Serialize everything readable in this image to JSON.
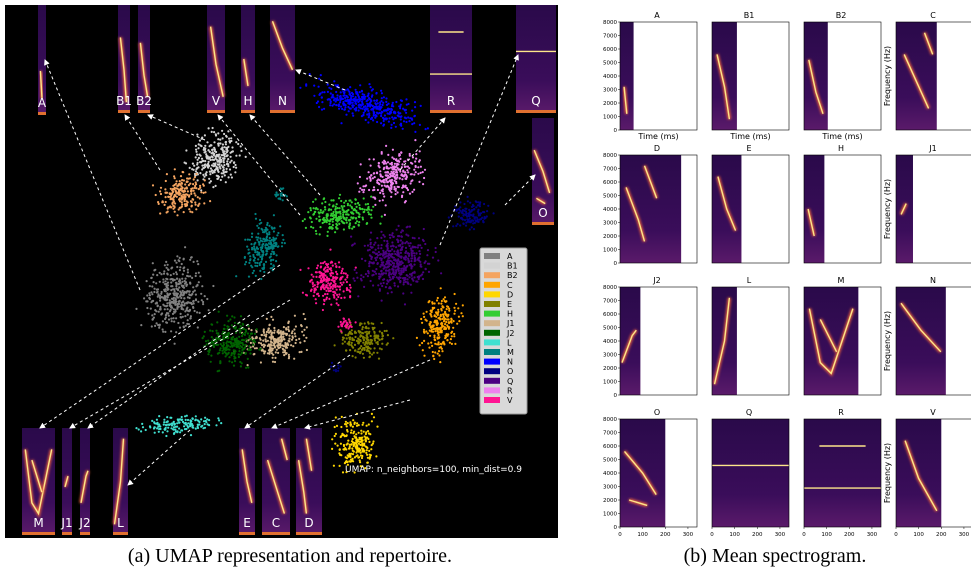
{
  "panel_a": {
    "caption": "(a) UMAP representation and repertoire.",
    "legend": [
      {
        "label": "A",
        "color": "#808080"
      },
      {
        "label": "B1",
        "color": "#d3d3d3"
      },
      {
        "label": "B2",
        "color": "#f4a460"
      },
      {
        "label": "C",
        "color": "#ffa500"
      },
      {
        "label": "D",
        "color": "#ffd700"
      },
      {
        "label": "E",
        "color": "#808000"
      },
      {
        "label": "H",
        "color": "#32cd32"
      },
      {
        "label": "J1",
        "color": "#d2b48c"
      },
      {
        "label": "J2",
        "color": "#006400"
      },
      {
        "label": "L",
        "color": "#40e0d0"
      },
      {
        "label": "M",
        "color": "#008080"
      },
      {
        "label": "N",
        "color": "#0000ff"
      },
      {
        "label": "O",
        "color": "#000080"
      },
      {
        "label": "Q",
        "color": "#4b0082"
      },
      {
        "label": "R",
        "color": "#ee82ee"
      },
      {
        "label": "V",
        "color": "#ff1493"
      }
    ],
    "thumbnails": [
      "A",
      "B1",
      "B2",
      "V",
      "H",
      "N",
      "R",
      "Q",
      "O",
      "M",
      "J1",
      "J2",
      "L",
      "E",
      "C",
      "D"
    ],
    "umap_note": "UMAP: n_neighbors=100, min_dist=0.9"
  },
  "panel_b": {
    "caption": "(b) Mean spectrogram.",
    "titles": [
      "A",
      "B1",
      "B2",
      "C",
      "D",
      "E",
      "H",
      "J1",
      "J2",
      "L",
      "M",
      "N",
      "O",
      "Q",
      "R",
      "V"
    ],
    "x_label": "Time (ms)",
    "y_label": "Frequency (Hz)",
    "yticks": [
      0,
      1000,
      2000,
      3000,
      4000,
      5000,
      6000,
      7000,
      8000
    ],
    "xticks": [
      0,
      100,
      200,
      300
    ]
  }
}
